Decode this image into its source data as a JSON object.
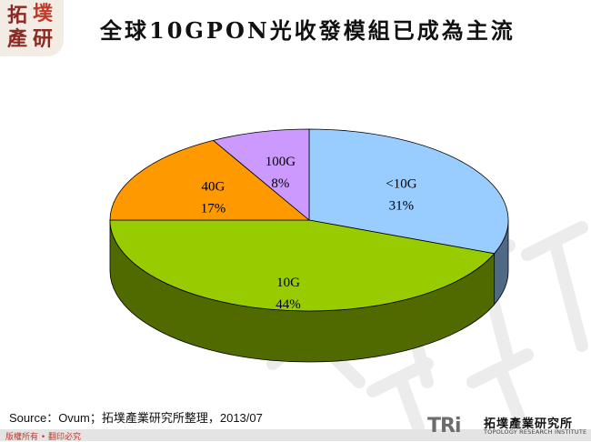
{
  "header": {
    "logo_chars": [
      "拓",
      "墣",
      "產",
      "研"
    ],
    "title": "全球10GPON光收發模組已成為主流"
  },
  "chart_data": {
    "type": "pie",
    "style": "3d",
    "title": "",
    "slices": [
      {
        "label": "<10G",
        "percent_label": "31%",
        "value": 31,
        "color": "#99ccff"
      },
      {
        "label": "10G",
        "percent_label": "44%",
        "value": 44,
        "color": "#99cc00"
      },
      {
        "label": "40G",
        "percent_label": "17%",
        "value": 17,
        "color": "#ff9900"
      },
      {
        "label": "100G",
        "percent_label": "8%",
        "value": 8,
        "color": "#cc99ff"
      }
    ]
  },
  "footer": {
    "source": "Source：Ovum；拓墣產業研究所整理，2013/07",
    "copyright": "版權所有 • 翻印必究",
    "brand_mark": "TRi",
    "brand_cn": "拓墣產業研究所",
    "brand_en": "TOPOLOGY RESEARCH INSTITUTE"
  }
}
